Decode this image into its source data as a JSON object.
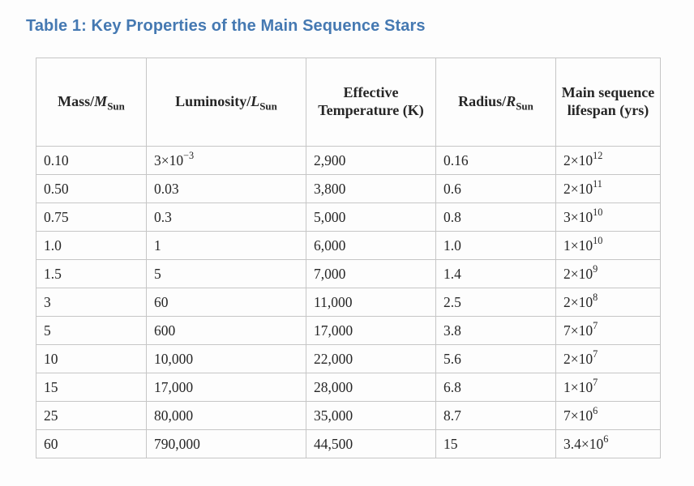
{
  "title": {
    "text": "Table 1: Key Properties of the Main Sequence Stars",
    "color": "#4579b2"
  },
  "table": {
    "border_color": "#c6c6c6",
    "text_color": "#262626",
    "columns": [
      {
        "id": "mass",
        "parts": [
          [
            "text",
            "Mass/"
          ],
          [
            "sym",
            "M"
          ],
          [
            "sub",
            "Sun"
          ]
        ]
      },
      {
        "id": "luminosity",
        "parts": [
          [
            "text",
            "Luminosity/"
          ],
          [
            "sym",
            "L"
          ],
          [
            "sub",
            "Sun"
          ]
        ]
      },
      {
        "id": "temperature",
        "parts": [
          [
            "text",
            "Effective Temperature (K)"
          ]
        ]
      },
      {
        "id": "radius",
        "parts": [
          [
            "text",
            "Radius/"
          ],
          [
            "sym",
            "R"
          ],
          [
            "sub",
            "Sun"
          ]
        ]
      },
      {
        "id": "lifespan",
        "parts": [
          [
            "text",
            "Main sequence lifespan (yrs)"
          ]
        ]
      }
    ],
    "rows": [
      [
        "0.10",
        "3×10^−3",
        "2,900",
        "0.16",
        "2×10^12"
      ],
      [
        "0.50",
        "0.03",
        "3,800",
        "0.6",
        "2×10^11"
      ],
      [
        "0.75",
        "0.3",
        "5,000",
        "0.8",
        "3×10^10"
      ],
      [
        "1.0",
        "1",
        "6,000",
        "1.0",
        "1×10^10"
      ],
      [
        "1.5",
        "5",
        "7,000",
        "1.4",
        "2×10^9"
      ],
      [
        "3",
        "60",
        "11,000",
        "2.5",
        "2×10^8"
      ],
      [
        "5",
        "600",
        "17,000",
        "3.8",
        "7×10^7"
      ],
      [
        "10",
        "10,000",
        "22,000",
        "5.6",
        "2×10^7"
      ],
      [
        "15",
        "17,000",
        "28,000",
        "6.8",
        "1×10^7"
      ],
      [
        "25",
        "80,000",
        "35,000",
        "8.7",
        "7×10^6"
      ],
      [
        "60",
        "790,000",
        "44,500",
        "15",
        "3.4×10^6"
      ]
    ]
  }
}
